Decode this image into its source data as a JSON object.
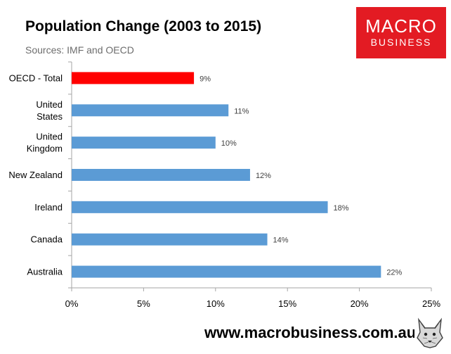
{
  "header": {
    "title": "Population Change (2003 to 2015)",
    "subtitle": "Sources: IMF and OECD"
  },
  "logo": {
    "line1": "MACRO",
    "line2": "BUSINESS"
  },
  "footer": {
    "url": "www.macrobusiness.com.au"
  },
  "icons": {
    "mascot": "wolf-mascot-icon"
  },
  "chart_data": {
    "type": "bar",
    "orientation": "horizontal",
    "title": "Population Change (2003 to 2015)",
    "subtitle": "Sources: IMF and OECD",
    "categories": [
      "OECD - Total",
      "United States",
      "United Kingdom",
      "New Zealand",
      "Ireland",
      "Canada",
      "Australia"
    ],
    "category_lines": [
      [
        "OECD - Total"
      ],
      [
        "United",
        "States"
      ],
      [
        "United",
        "Kingdom"
      ],
      [
        "New Zealand"
      ],
      [
        "Ireland"
      ],
      [
        "Canada"
      ],
      [
        "Australia"
      ]
    ],
    "values": [
      8.5,
      10.9,
      10.0,
      12.4,
      17.8,
      13.6,
      21.5
    ],
    "data_labels": [
      "9%",
      "11%",
      "10%",
      "12%",
      "18%",
      "14%",
      "22%"
    ],
    "xlim": [
      0,
      25
    ],
    "ticks": [
      0,
      5,
      10,
      15,
      20,
      25
    ],
    "tick_labels": [
      "0%",
      "5%",
      "10%",
      "15%",
      "20%",
      "25%"
    ],
    "xlabel": "",
    "ylabel": "",
    "grid": false,
    "legend": "none",
    "colors": {
      "highlight": "#ff0000",
      "bar": "#5b9bd5",
      "axis": "#a6a6a6",
      "text": "#000000"
    },
    "highlight_index": 0
  }
}
